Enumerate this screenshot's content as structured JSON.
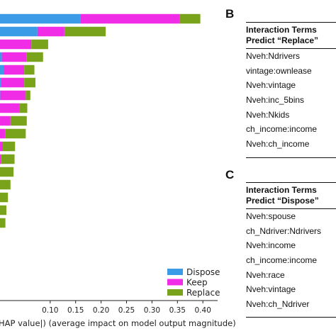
{
  "chart_data": {
    "type": "bar",
    "stacked": true,
    "orientation": "horizontal",
    "xlabel": "HAP value|) (average impact on model output magnitude)",
    "ylabel": "",
    "title": "",
    "xlim": [
      0,
      0.42
    ],
    "xticks": [
      0.1,
      0.15,
      0.2,
      0.25,
      0.3,
      0.35,
      0.4
    ],
    "xtick_labels": [
      "0.10",
      "0.15",
      "0.20",
      "0.25",
      "0.30",
      "0.35",
      "0.40"
    ],
    "grid": false,
    "legend_position": "bottom-right",
    "series": [
      {
        "name": "Dispose",
        "color": "#3c9be6",
        "values": [
          0.159,
          0.075,
          0,
          0.005,
          0.009,
          0.003,
          0.002,
          0,
          0,
          0,
          0,
          0,
          0,
          0,
          0,
          0,
          0
        ]
      },
      {
        "name": "Keep",
        "color": "#f02ce6",
        "values": [
          0.196,
          0.053,
          0.063,
          0.049,
          0.04,
          0.046,
          0.05,
          0.039,
          0.022,
          0.012,
          0.007,
          0.003,
          0.001,
          0,
          0,
          0,
          0
        ]
      },
      {
        "name": "Replace",
        "color": "#79a31b",
        "values": [
          0.04,
          0.081,
          0.033,
          0.032,
          0.02,
          0.022,
          0.009,
          0.016,
          0.032,
          0.04,
          0.024,
          0.027,
          0.027,
          0.022,
          0.017,
          0.014,
          0.012
        ]
      }
    ]
  },
  "panel_b": {
    "letter": "B",
    "header_line1": "Interaction Terms",
    "header_line2": "Predict “Replace”",
    "rows": [
      "Nveh:Ndrivers",
      "vintage:ownlease",
      "Nveh:vintage",
      "Nveh:inc_5bins",
      "Nveh:Nkids",
      "ch_income:income",
      "Nveh:ch_income"
    ]
  },
  "panel_c": {
    "letter": "C",
    "header_line1": "Interaction Terms",
    "header_line2": "Predict “Dispose”",
    "rows": [
      "Nveh:spouse",
      "ch_Ndriver:Ndrivers",
      "Nveh:income",
      "ch_income:income",
      "Nveh:race",
      "Nveh:vintage",
      "Nveh:ch_Ndriver"
    ]
  }
}
